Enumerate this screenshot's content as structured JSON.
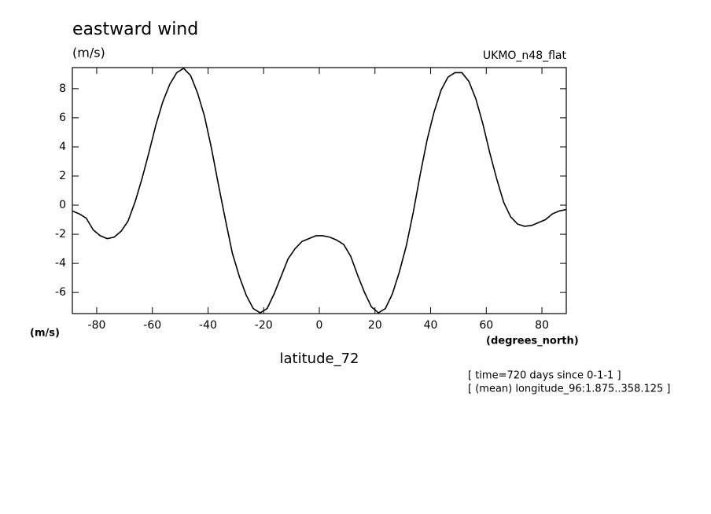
{
  "chart_data": {
    "type": "line",
    "title": "eastward wind",
    "y_unit": "(m/s)",
    "dataset": "UKMO_n48_flat",
    "x_unit_left": "(m/s)",
    "x_unit": "(degrees_north)",
    "xlabel": "latitude_72",
    "notes": [
      "[ time=720 days since 0-1-1 ]",
      "[ (mean) longitude_96:1.875..358.125 ]"
    ],
    "color": "#000000",
    "xlim": [
      -88.75,
      88.75
    ],
    "ylim": [
      -7.45,
      9.45
    ],
    "xticks": [
      -80,
      -60,
      -40,
      -20,
      0,
      20,
      40,
      60,
      80
    ],
    "yticks": [
      -6,
      -4,
      -2,
      0,
      2,
      4,
      6,
      8
    ],
    "x": [
      -88.75,
      -86.25,
      -83.75,
      -81.25,
      -78.75,
      -76.25,
      -73.75,
      -71.25,
      -68.75,
      -66.25,
      -63.75,
      -61.25,
      -58.75,
      -56.25,
      -53.75,
      -51.25,
      -48.75,
      -46.25,
      -43.75,
      -41.25,
      -38.75,
      -36.25,
      -33.75,
      -31.25,
      -28.75,
      -26.25,
      -23.75,
      -21.25,
      -18.75,
      -16.25,
      -13.75,
      -11.25,
      -8.75,
      -6.25,
      -3.75,
      -1.25,
      1.25,
      3.75,
      6.25,
      8.75,
      11.25,
      13.75,
      16.25,
      18.75,
      21.25,
      23.75,
      26.25,
      28.75,
      31.25,
      33.75,
      36.25,
      38.75,
      41.25,
      43.75,
      46.25,
      48.75,
      51.25,
      53.75,
      56.25,
      58.75,
      61.25,
      63.75,
      66.25,
      68.75,
      71.25,
      73.75,
      76.25,
      78.75,
      81.25,
      83.75,
      86.25,
      88.75
    ],
    "values": [
      -0.4,
      -0.6,
      -0.9,
      -1.7,
      -2.1,
      -2.3,
      -2.2,
      -1.8,
      -1.1,
      0.2,
      1.8,
      3.6,
      5.5,
      7.1,
      8.3,
      9.1,
      9.4,
      8.9,
      7.7,
      6.1,
      3.9,
      1.4,
      -1.0,
      -3.3,
      -4.9,
      -6.2,
      -7.1,
      -7.4,
      -7.1,
      -6.1,
      -4.9,
      -3.7,
      -3.0,
      -2.5,
      -2.3,
      -2.1,
      -2.1,
      -2.2,
      -2.4,
      -2.7,
      -3.5,
      -4.8,
      -6.0,
      -7.0,
      -7.4,
      -7.1,
      -6.1,
      -4.6,
      -2.8,
      -0.5,
      2.1,
      4.5,
      6.4,
      7.9,
      8.8,
      9.1,
      9.1,
      8.5,
      7.3,
      5.6,
      3.6,
      1.8,
      0.2,
      -0.8,
      -1.3,
      -1.45,
      -1.4,
      -1.2,
      -1.0,
      -0.6,
      -0.4,
      -0.3
    ]
  }
}
